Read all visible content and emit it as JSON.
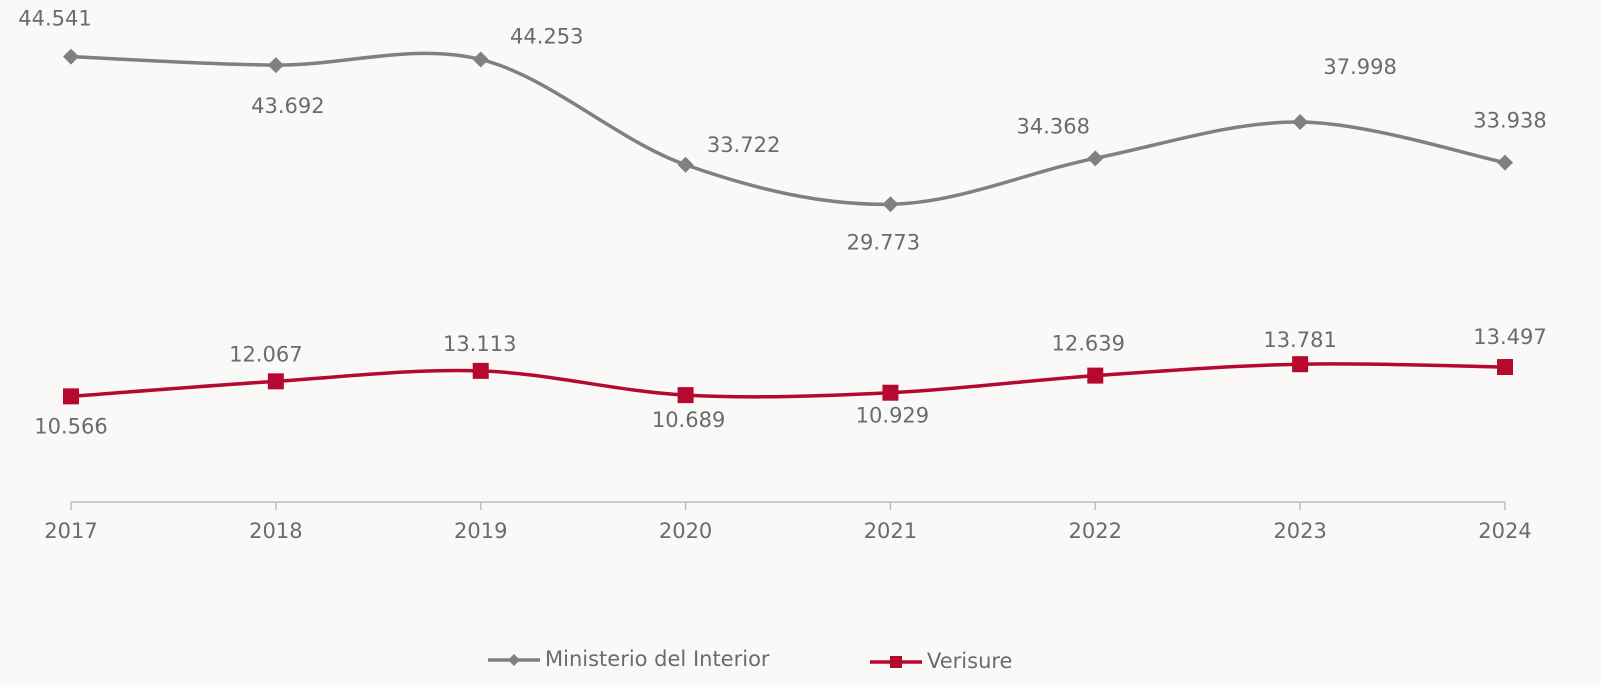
{
  "chart_data": {
    "type": "line",
    "categories": [
      "2017",
      "2018",
      "2019",
      "2020",
      "2021",
      "2022",
      "2023",
      "2024"
    ],
    "series": [
      {
        "name": "Ministerio del Interior",
        "color": "#808080",
        "marker": "diamond",
        "values": [
          44541,
          43692,
          44253,
          33722,
          29773,
          34368,
          37998,
          33938
        ],
        "value_labels": [
          "44.541",
          "43.692",
          "44.253",
          "33.722",
          "29.773",
          "34.368",
          "37.998",
          "33.938"
        ]
      },
      {
        "name": "Verisure",
        "color": "#b5092f",
        "marker": "square",
        "values": [
          10566,
          12067,
          13113,
          10689,
          10929,
          12639,
          13781,
          13497
        ],
        "value_labels": [
          "10.566",
          "12.067",
          "13.113",
          "10.689",
          "10.929",
          "12.639",
          "13.781",
          "13.497"
        ]
      }
    ],
    "ylim": [
      0,
      50000
    ],
    "smooth": true,
    "legend": "bottom"
  }
}
